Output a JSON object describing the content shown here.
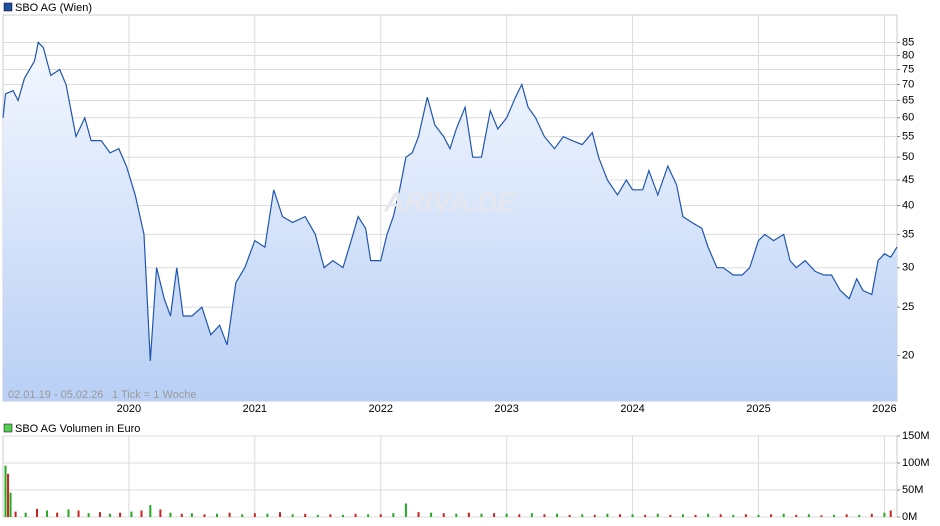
{
  "chart_data": [
    {
      "type": "line",
      "title": "SBO AG (Wien)",
      "color": "#1f56b0",
      "log_scale": true,
      "grid": true,
      "annotations": [
        "02.01.19 - 05.02.26",
        "1 Tick = 1 Woche"
      ],
      "watermark": "ARIVA.DE",
      "x": [
        2019.0,
        2019.02,
        2019.08,
        2019.12,
        2019.17,
        2019.25,
        2019.28,
        2019.32,
        2019.38,
        2019.45,
        2019.5,
        2019.58,
        2019.65,
        2019.7,
        2019.78,
        2019.85,
        2019.92,
        2019.98,
        2020.05,
        2020.12,
        2020.17,
        2020.22,
        2020.28,
        2020.33,
        2020.38,
        2020.43,
        2020.5,
        2020.58,
        2020.65,
        2020.72,
        2020.78,
        2020.85,
        2020.92,
        2021.0,
        2021.08,
        2021.15,
        2021.22,
        2021.3,
        2021.4,
        2021.48,
        2021.55,
        2021.62,
        2021.7,
        2021.78,
        2021.82,
        2021.88,
        2021.92,
        2022.0,
        2022.05,
        2022.1,
        2022.15,
        2022.2,
        2022.25,
        2022.3,
        2022.37,
        2022.43,
        2022.5,
        2022.55,
        2022.6,
        2022.67,
        2022.73,
        2022.8,
        2022.87,
        2022.93,
        2023.0,
        2023.07,
        2023.12,
        2023.17,
        2023.23,
        2023.3,
        2023.38,
        2023.45,
        2023.52,
        2023.6,
        2023.68,
        2023.73,
        2023.8,
        2023.88,
        2023.95,
        2024.0,
        2024.08,
        2024.13,
        2024.2,
        2024.28,
        2024.35,
        2024.4,
        2024.47,
        2024.55,
        2024.6,
        2024.67,
        2024.72,
        2024.8,
        2024.87,
        2024.93,
        2025.0,
        2025.05,
        2025.12,
        2025.2,
        2025.25,
        2025.3,
        2025.37,
        2025.45,
        2025.52,
        2025.58,
        2025.65,
        2025.72,
        2025.78,
        2025.83,
        2025.9,
        2025.95,
        2026.0,
        2026.05,
        2026.1
      ],
      "values": [
        60,
        67,
        68,
        65,
        72,
        78,
        85,
        83,
        73,
        75,
        70,
        55,
        60,
        54,
        54,
        51,
        52,
        48,
        42,
        35,
        19.5,
        30,
        26,
        24,
        30,
        24,
        24,
        25,
        22,
        23,
        21,
        28,
        30,
        34,
        33,
        43,
        38,
        37,
        38,
        35,
        30,
        31,
        30,
        35,
        38,
        36,
        31,
        31,
        35,
        38,
        43,
        50,
        51,
        55,
        66,
        58,
        55,
        52,
        57,
        63,
        50,
        50,
        62,
        57,
        60,
        66,
        70,
        63,
        60,
        55,
        52,
        55,
        54,
        53,
        56,
        50,
        45,
        42,
        45,
        43,
        43,
        47,
        42,
        48,
        44,
        38,
        37,
        36,
        33,
        30,
        30,
        29,
        29,
        30,
        34,
        35,
        34,
        35,
        31,
        30,
        31,
        29.5,
        29,
        29,
        27,
        26,
        28.5,
        27,
        26.5,
        31,
        32,
        31.5,
        33
      ],
      "xlim": [
        2019.0,
        2026.1
      ],
      "xticks": [
        2020,
        2021,
        2022,
        2023,
        2024,
        2025,
        2026
      ],
      "ylim": [
        16.2,
        96.5
      ],
      "yticks": [
        20,
        25,
        30,
        35,
        40,
        45,
        50,
        55,
        60,
        65,
        70,
        75,
        80,
        85
      ]
    },
    {
      "type": "bar",
      "title": "SBO AG Volumen in Euro",
      "color": "#2a9d2a",
      "grid": true,
      "series": [
        {
          "color": "#22aa22",
          "x": [
            2019.02,
            2019.06,
            2019.18,
            2019.35,
            2019.52,
            2019.68,
            2019.85,
            2020.02,
            2020.17,
            2020.33,
            2020.5,
            2020.7,
            2020.9,
            2021.1,
            2021.3,
            2021.5,
            2021.7,
            2021.9,
            2022.1,
            2022.2,
            2022.4,
            2022.6,
            2022.8,
            2023.0,
            2023.2,
            2023.4,
            2023.6,
            2023.8,
            2024.0,
            2024.2,
            2024.4,
            2024.6,
            2024.8,
            2025.0,
            2025.2,
            2025.4,
            2025.6,
            2025.8,
            2026.0
          ],
          "values": [
            95,
            45,
            8,
            12,
            14,
            7,
            6,
            10,
            22,
            8,
            7,
            6,
            5,
            6,
            5,
            4,
            4,
            5,
            7,
            25,
            8,
            6,
            6,
            6,
            7,
            6,
            5,
            6,
            5,
            6,
            5,
            6,
            4,
            4,
            6,
            5,
            4,
            4,
            8
          ]
        },
        {
          "color": "#cc2222",
          "x": [
            2019.04,
            2019.1,
            2019.27,
            2019.43,
            2019.6,
            2019.77,
            2019.93,
            2020.1,
            2020.25,
            2020.42,
            2020.6,
            2020.8,
            2021.0,
            2021.2,
            2021.4,
            2021.6,
            2021.8,
            2022.0,
            2022.3,
            2022.5,
            2022.7,
            2022.9,
            2023.1,
            2023.3,
            2023.5,
            2023.7,
            2023.9,
            2024.1,
            2024.3,
            2024.5,
            2024.7,
            2024.9,
            2025.1,
            2025.3,
            2025.5,
            2025.7,
            2025.9,
            2026.05
          ],
          "values": [
            80,
            10,
            15,
            8,
            12,
            9,
            8,
            12,
            14,
            6,
            5,
            8,
            7,
            9,
            6,
            5,
            6,
            5,
            9,
            7,
            8,
            7,
            5,
            5,
            4,
            4,
            5,
            4,
            4,
            4,
            5,
            5,
            5,
            4,
            3,
            5,
            6,
            12
          ]
        }
      ],
      "xlim": [
        2019.0,
        2026.1
      ],
      "xticks": [
        2020,
        2021,
        2022,
        2023,
        2024,
        2025,
        2026
      ],
      "ylim": [
        0,
        150
      ],
      "yticks": [
        {
          "value": 0,
          "label": "0M"
        },
        {
          "value": 50,
          "label": "50M"
        },
        {
          "value": 100,
          "label": "100M"
        },
        {
          "value": 150,
          "label": "150M"
        }
      ]
    }
  ]
}
